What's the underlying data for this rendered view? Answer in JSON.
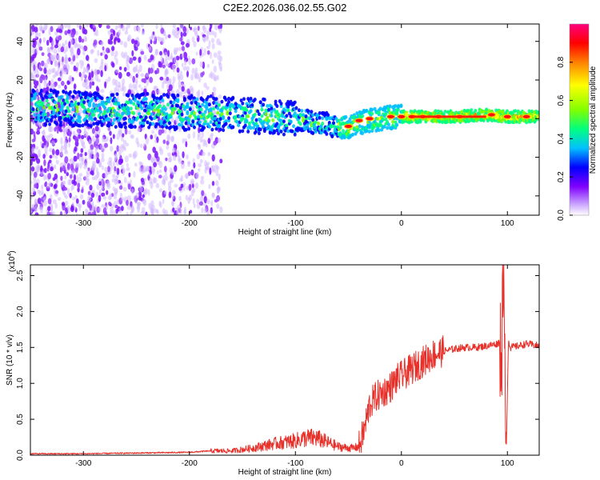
{
  "figure_title": "C2E2.2026.036.02.55.G02",
  "chart_data": [
    {
      "type": "heatmap",
      "title": "C2E2.2026.036.02.55.G02",
      "xlabel": "Height of straight line (km)",
      "ylabel": "Frequency (Hz)",
      "xlim": [
        -350,
        130
      ],
      "ylim": [
        -50,
        49
      ],
      "x_ticks": [
        -300,
        -200,
        -100,
        0,
        100
      ],
      "y_ticks": [
        -40,
        -20,
        0,
        20,
        40
      ],
      "colorbar": {
        "label": "Normalized spectral amplitude",
        "range": [
          0,
          1
        ],
        "ticks": [
          0.0,
          0.2,
          0.4,
          0.6,
          0.8
        ],
        "colormap": [
          "#ffffff",
          "#c8a0ff",
          "#8000ff",
          "#0000ff",
          "#00c0ff",
          "#00ff80",
          "#80ff00",
          "#ffff00",
          "#ff8000",
          "#ff0000",
          "#ff0080"
        ]
      },
      "ridge": {
        "x": [
          -350,
          -300,
          -250,
          -200,
          -150,
          -100,
          -80,
          -60,
          -50,
          -40,
          -20,
          0,
          20,
          50,
          80,
          100,
          130
        ],
        "y": [
          6,
          5,
          4,
          3,
          2,
          0,
          -2,
          -4,
          -5,
          -2,
          0,
          1,
          1,
          1,
          2,
          1,
          1
        ]
      },
      "peaks": [
        {
          "x": -50,
          "y": -4
        },
        {
          "x": -40,
          "y": -1
        },
        {
          "x": -30,
          "y": 0
        },
        {
          "x": -10,
          "y": 1
        },
        {
          "x": 0,
          "y": 1
        },
        {
          "x": 10,
          "y": 1
        },
        {
          "x": 20,
          "y": 1
        },
        {
          "x": 35,
          "y": 1
        },
        {
          "x": 55,
          "y": 1
        },
        {
          "x": 85,
          "y": 2
        },
        {
          "x": 100,
          "y": 1
        },
        {
          "x": 118,
          "y": 1
        }
      ]
    },
    {
      "type": "line",
      "xlabel": "Height of straight line (km)",
      "ylabel": "SNR (10 * v/v)",
      "y_multiplier": "(x10",
      "y_multiplier_exp": "4",
      "xlim": [
        -350,
        130
      ],
      "ylim": [
        0,
        2.65
      ],
      "x_ticks": [
        -300,
        -200,
        -100,
        0,
        100
      ],
      "y_ticks": [
        0.0,
        0.5,
        1.0,
        1.5,
        2.0,
        2.5
      ],
      "line_color": "#e8302a",
      "series": [
        {
          "x": [
            -350,
            -300,
            -250,
            -200,
            -180,
            -160,
            -140,
            -120,
            -100,
            -90,
            -80,
            -70,
            -60,
            -50,
            -45,
            -40,
            -35,
            -30,
            -25,
            -20,
            -15,
            -10,
            -5,
            0,
            5,
            10,
            20,
            30,
            40,
            50,
            60,
            70,
            80,
            90,
            95,
            97,
            99,
            101,
            103,
            110,
            118,
            130
          ],
          "y": [
            0.02,
            0.02,
            0.03,
            0.04,
            0.06,
            0.06,
            0.1,
            0.16,
            0.2,
            0.24,
            0.24,
            0.18,
            0.12,
            0.1,
            0.1,
            0.12,
            0.35,
            0.7,
            0.8,
            0.85,
            0.9,
            0.95,
            1.05,
            1.1,
            1.15,
            1.2,
            1.3,
            1.4,
            1.45,
            1.48,
            1.5,
            1.5,
            1.52,
            1.55,
            1.6,
            2.65,
            0.1,
            1.6,
            1.5,
            1.52,
            1.55,
            1.52
          ]
        }
      ]
    }
  ]
}
